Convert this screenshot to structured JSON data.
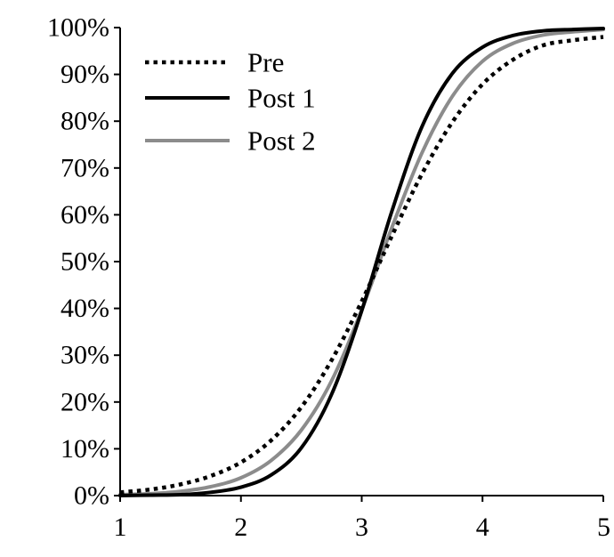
{
  "chart_data": {
    "type": "line",
    "xlim": [
      1,
      5
    ],
    "ylim": [
      0,
      100
    ],
    "x_ticks": [
      "1",
      "2",
      "3",
      "4",
      "5"
    ],
    "y_ticks": [
      "0%",
      "10%",
      "20%",
      "30%",
      "40%",
      "50%",
      "60%",
      "70%",
      "80%",
      "90%",
      "100%"
    ],
    "grid": false,
    "legend_position": "top-left",
    "series": [
      {
        "name": "Pre",
        "color": "#000000",
        "style": "dotted",
        "x": [
          1,
          1.25,
          1.5,
          1.75,
          2,
          2.25,
          2.5,
          2.75,
          3,
          3.25,
          3.5,
          3.75,
          4,
          4.25,
          4.5,
          4.75,
          5
        ],
        "y": [
          0.7,
          1.3,
          2.4,
          4.2,
          7.1,
          11.8,
          18.9,
          28.9,
          41.5,
          55.5,
          68.8,
          79.8,
          87.9,
          93.1,
          96.2,
          97.3,
          98
        ]
      },
      {
        "name": "Post 1",
        "color": "#000000",
        "style": "solid",
        "x": [
          1,
          1.25,
          1.5,
          1.75,
          2,
          2.25,
          2.5,
          2.75,
          3,
          3.25,
          3.5,
          3.75,
          4,
          4.25,
          4.5,
          4.75,
          5
        ],
        "y": [
          0,
          0.1,
          0.2,
          0.7,
          1.8,
          4.4,
          10.2,
          21.6,
          39.5,
          60.8,
          78.9,
          90.2,
          95.8,
          98.3,
          99.3,
          99.6,
          99.8
        ]
      },
      {
        "name": "Post 2",
        "color": "#8c8c8c",
        "style": "solid",
        "x": [
          1,
          1.25,
          1.5,
          1.75,
          2,
          2.25,
          2.5,
          2.75,
          3,
          3.25,
          3.5,
          3.75,
          4,
          4.25,
          4.5,
          4.75,
          5
        ],
        "y": [
          0.2,
          0.4,
          0.9,
          1.9,
          3.8,
          7.5,
          14,
          24.5,
          39.7,
          57.3,
          73.3,
          85.3,
          92.8,
          96.6,
          98.4,
          99.1,
          99.6
        ]
      }
    ]
  }
}
